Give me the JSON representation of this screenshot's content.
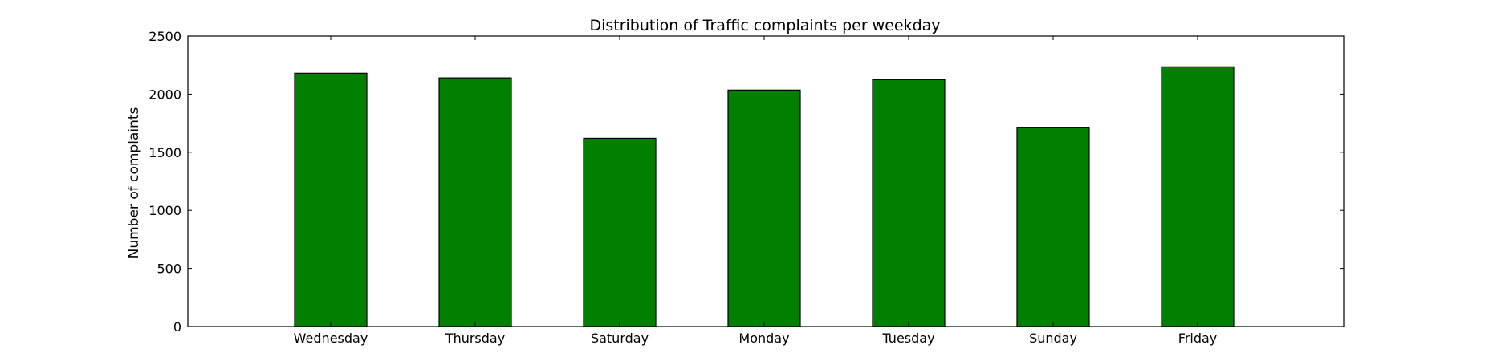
{
  "chart_data": {
    "type": "bar",
    "title": "Distribution of  Traffic complaints per weekday",
    "xlabel": "",
    "ylabel": "Number of complaints",
    "categories": [
      "Wednesday",
      "Thursday",
      "Saturday",
      "Monday",
      "Tuesday",
      "Sunday",
      "Friday"
    ],
    "values": [
      2180,
      2140,
      1620,
      2035,
      2125,
      1715,
      2235
    ],
    "ylim": [
      0,
      2500
    ],
    "yticks": [
      0,
      500,
      1000,
      1500,
      2000,
      2500
    ],
    "grid": false,
    "legend": "none",
    "bar_color": "#008000",
    "edge_color": "#000000"
  }
}
